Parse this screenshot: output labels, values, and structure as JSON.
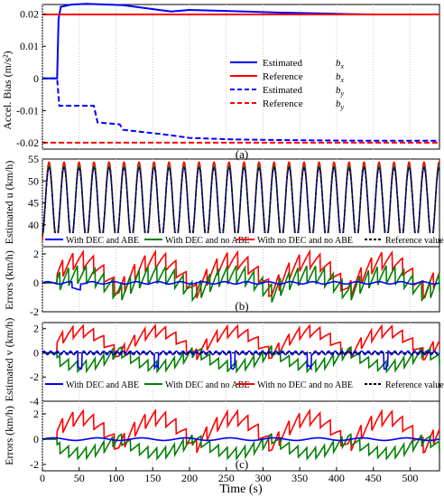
{
  "figure": {
    "xlabel": "Time (s)",
    "xticks": [
      0,
      50,
      100,
      150,
      200,
      250,
      300,
      350,
      400,
      450,
      500
    ],
    "xlim": [
      0,
      540
    ]
  },
  "colors": {
    "blue": "#0000ff",
    "red": "#ff0000",
    "green": "#008000",
    "black": "#000000"
  },
  "chart_data": [
    {
      "id": "a",
      "type": "line",
      "panel_label": "(a)",
      "ylabel": "Accel. Bias (m/s²)",
      "ylim": [
        -0.022,
        0.023
      ],
      "yticks": [
        0.02,
        0.01,
        0,
        -0.01,
        -0.02
      ],
      "ytick_labels": [
        "0.02",
        "0.01",
        "0",
        "-0.01",
        "-0.02"
      ],
      "legend_location": "right, center",
      "series": [
        {
          "name": "Estimated",
          "sub": "bx",
          "style": "solid",
          "color": "#0000ff",
          "x": [
            0,
            20,
            22,
            25,
            40,
            60,
            110,
            175,
            200,
            265,
            320,
            400,
            450
          ],
          "y": [
            0,
            0,
            0.0185,
            0.0223,
            0.023,
            0.0232,
            0.0228,
            0.0208,
            0.0213,
            0.0209,
            0.0205,
            0.0201,
            0.0199
          ]
        },
        {
          "name": "Reference",
          "sub": "bx",
          "style": "solid",
          "color": "#ff0000",
          "x": [
            0,
            540
          ],
          "y": [
            0.0199,
            0.0199
          ]
        },
        {
          "name": "Estimated",
          "sub": "by",
          "style": "dashed",
          "color": "#0000ff",
          "x": [
            0,
            20,
            23,
            70,
            75,
            105,
            110,
            160,
            175,
            200,
            260,
            320,
            380,
            450,
            540
          ],
          "y": [
            0,
            0,
            -0.0085,
            -0.0085,
            -0.0137,
            -0.0143,
            -0.016,
            -0.0173,
            -0.0177,
            -0.0185,
            -0.019,
            -0.0192,
            -0.0193,
            -0.0194,
            -0.0194
          ]
        },
        {
          "name": "Reference",
          "sub": "by",
          "style": "dashed",
          "color": "#ff0000",
          "x": [
            0,
            540
          ],
          "y": [
            -0.02,
            -0.02
          ]
        }
      ]
    },
    {
      "id": "b1",
      "type": "line",
      "ylabel": "Estimated u (km/h)",
      "ylim": [
        35,
        55
      ],
      "yticks": [
        40,
        45,
        50,
        55
      ],
      "description": "sinusoidal longitudinal speed, period ~20 s, range ~37-53 km/h; four curves nearly overlapping",
      "series": [
        {
          "name": "With DEC and ABE",
          "color": "#0000ff",
          "style": "solid"
        },
        {
          "name": "With DEC and no ABE",
          "color": "#008000",
          "style": "solid"
        },
        {
          "name": "With no DEC and no ABE",
          "color": "#ff0000",
          "style": "solid"
        },
        {
          "name": "Reference value",
          "color": "#000000",
          "style": "dashed"
        }
      ]
    },
    {
      "id": "b2",
      "type": "line",
      "panel_label": "(b)",
      "ylabel": "Errors (km/h)",
      "ylim": [
        -2,
        2.5
      ],
      "yticks": [
        2,
        0,
        -2
      ],
      "description": "errors of u estimates: blue ~0, green sawtooth ~-1.5..1.5, red sawtooth ~-1.8..2.2",
      "series": [
        {
          "name": "With DEC and ABE",
          "color": "#0000ff"
        },
        {
          "name": "With DEC and no ABE",
          "color": "#008000"
        },
        {
          "name": "With no DEC and no ABE",
          "color": "#ff0000"
        }
      ]
    },
    {
      "id": "c1",
      "type": "line",
      "ylabel": "Estimated v (km/h)",
      "ylim": [
        -4,
        2.5
      ],
      "yticks": [
        2,
        0,
        -2,
        -4
      ],
      "series": [
        {
          "name": "With DEC and ABE",
          "color": "#0000ff",
          "style": "solid"
        },
        {
          "name": "With DEC and no ABE",
          "color": "#008000",
          "style": "solid"
        },
        {
          "name": "With no DEC and no ABE",
          "color": "#ff0000",
          "style": "solid"
        },
        {
          "name": "Reference value",
          "color": "#000000",
          "style": "dashed"
        }
      ]
    },
    {
      "id": "c2",
      "type": "line",
      "panel_label": "(c)",
      "ylabel": "Errors (km/h)",
      "ylim": [
        -2.5,
        3
      ],
      "yticks": [
        2,
        0,
        -2
      ],
      "series": [
        {
          "name": "With DEC and ABE",
          "color": "#0000ff"
        },
        {
          "name": "With DEC and no ABE",
          "color": "#008000"
        },
        {
          "name": "With no DEC and no ABE",
          "color": "#ff0000"
        }
      ]
    }
  ]
}
